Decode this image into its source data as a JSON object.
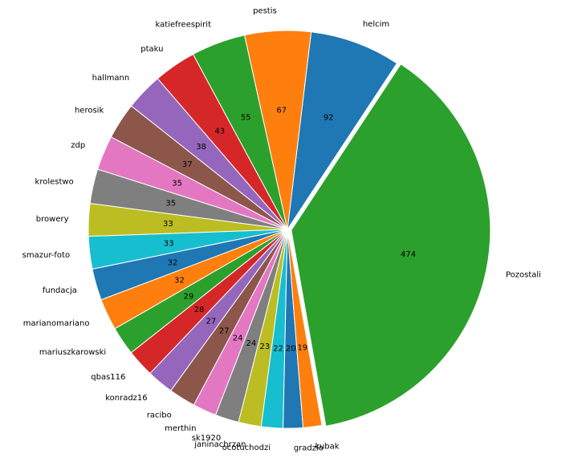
{
  "chart_data": {
    "type": "pie",
    "categories": [
      "Pozostali",
      "helcim",
      "pestis",
      "katiefreespirit",
      "ptaku",
      "hallmann",
      "herosik",
      "zdp",
      "krolestwo",
      "browery",
      "smazur-foto",
      "fundacja",
      "marianomariano",
      "mariuszkarowski",
      "qbas116",
      "konradz16",
      "racibo",
      "merthin",
      "sk1920",
      "janinachrzan",
      "ocotuchodzi",
      "gradzio",
      "kubak"
    ],
    "values": [
      474,
      92,
      67,
      55,
      43,
      38,
      37,
      35,
      35,
      33,
      33,
      32,
      32,
      29,
      28,
      27,
      27,
      24,
      24,
      23,
      22,
      20,
      19
    ],
    "value_labels": [
      "474",
      "92",
      "67",
      "55",
      "43",
      "38",
      "37",
      "35",
      "35",
      "33",
      "33",
      "32",
      "32",
      "29",
      "28",
      "27",
      "27",
      "24",
      "24",
      "23",
      "22",
      "20",
      "19"
    ],
    "colors": [
      "#2ca02c",
      "#1f77b4",
      "#ff7f0e",
      "#2ca02c",
      "#d62728",
      "#9467bd",
      "#8c564b",
      "#e377c2",
      "#7f7f7f",
      "#bcbd22",
      "#17becf",
      "#1f77b4",
      "#ff7f0e",
      "#2ca02c",
      "#d62728",
      "#9467bd",
      "#8c564b",
      "#e377c2",
      "#7f7f7f",
      "#bcbd22",
      "#17becf",
      "#1f77b4",
      "#ff7f0e"
    ],
    "explode": [
      0.02,
      0,
      0,
      0,
      0,
      0,
      0,
      0,
      0,
      0,
      0,
      0,
      0,
      0,
      0,
      0,
      0,
      0,
      0,
      0,
      0,
      0,
      0
    ],
    "start_angle_deg": -80,
    "direction": "counterclockwise",
    "title": "",
    "legend": "none"
  }
}
